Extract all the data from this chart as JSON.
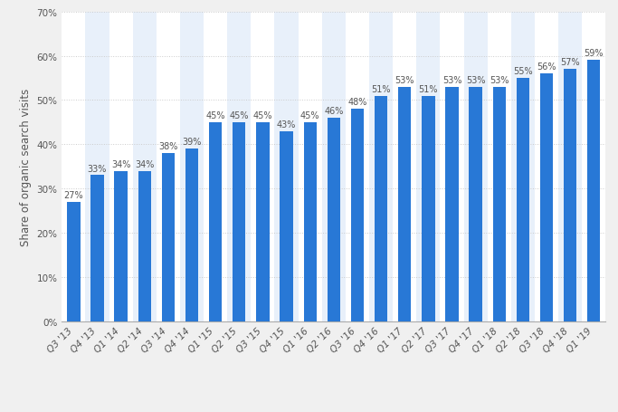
{
  "categories": [
    "Q3 '13",
    "Q4 '13",
    "Q1 '14",
    "Q2 '14",
    "Q3 '14",
    "Q4 '14",
    "Q1 '15",
    "Q2 '15",
    "Q3 '15",
    "Q4 '15",
    "Q1 '16",
    "Q2 '16",
    "Q3 '16",
    "Q4 '16",
    "Q1 '17",
    "Q2 '17",
    "Q3 '17",
    "Q4 '17",
    "Q1 '18",
    "Q2 '18",
    "Q3 '18",
    "Q4 '18",
    "Q1 '19"
  ],
  "values": [
    27,
    33,
    34,
    34,
    38,
    39,
    45,
    45,
    45,
    43,
    45,
    46,
    48,
    51,
    53,
    51,
    53,
    53,
    53,
    55,
    56,
    57,
    59
  ],
  "bar_color": "#2878d6",
  "ylabel": "Share of organic search visits",
  "ylim": [
    0,
    70
  ],
  "yticks": [
    0,
    10,
    20,
    30,
    40,
    50,
    60,
    70
  ],
  "background_color": "#f0f0f0",
  "col_bg_odd": "#e8f0fa",
  "col_bg_even": "#ffffff",
  "grid_color": "#cccccc",
  "label_color": "#555555",
  "bar_label_fontsize": 7.0,
  "axis_label_fontsize": 8.5,
  "tick_fontsize": 7.5
}
